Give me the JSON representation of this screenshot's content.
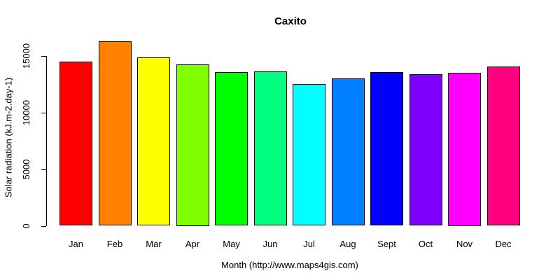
{
  "chart_data": {
    "type": "bar",
    "title": "Caxito",
    "xlabel": "Month (http://www.maps4gis.com)",
    "ylabel": "Solar radiation (kJ.m-2.day-1)",
    "categories": [
      "Jan",
      "Feb",
      "Mar",
      "Apr",
      "May",
      "Jun",
      "Jul",
      "Aug",
      "Sept",
      "Oct",
      "Nov",
      "Dec"
    ],
    "values": [
      14500,
      16300,
      14850,
      14250,
      13550,
      13650,
      12500,
      13000,
      13600,
      13400,
      13500,
      14050
    ],
    "bar_colors": [
      "#FF0000",
      "#FF8000",
      "#FFFF00",
      "#80FF00",
      "#00FF00",
      "#00FF80",
      "#00FFFF",
      "#0080FF",
      "#0000FF",
      "#8000FF",
      "#FF00FF",
      "#FF0080"
    ],
    "bar_border_color": "#000000",
    "y_ticks": [
      0,
      5000,
      10000,
      15000
    ],
    "ylim": [
      0,
      16400
    ],
    "grid": false,
    "legend": "none",
    "background": "#FFFFFF",
    "text_color": "#000000"
  }
}
